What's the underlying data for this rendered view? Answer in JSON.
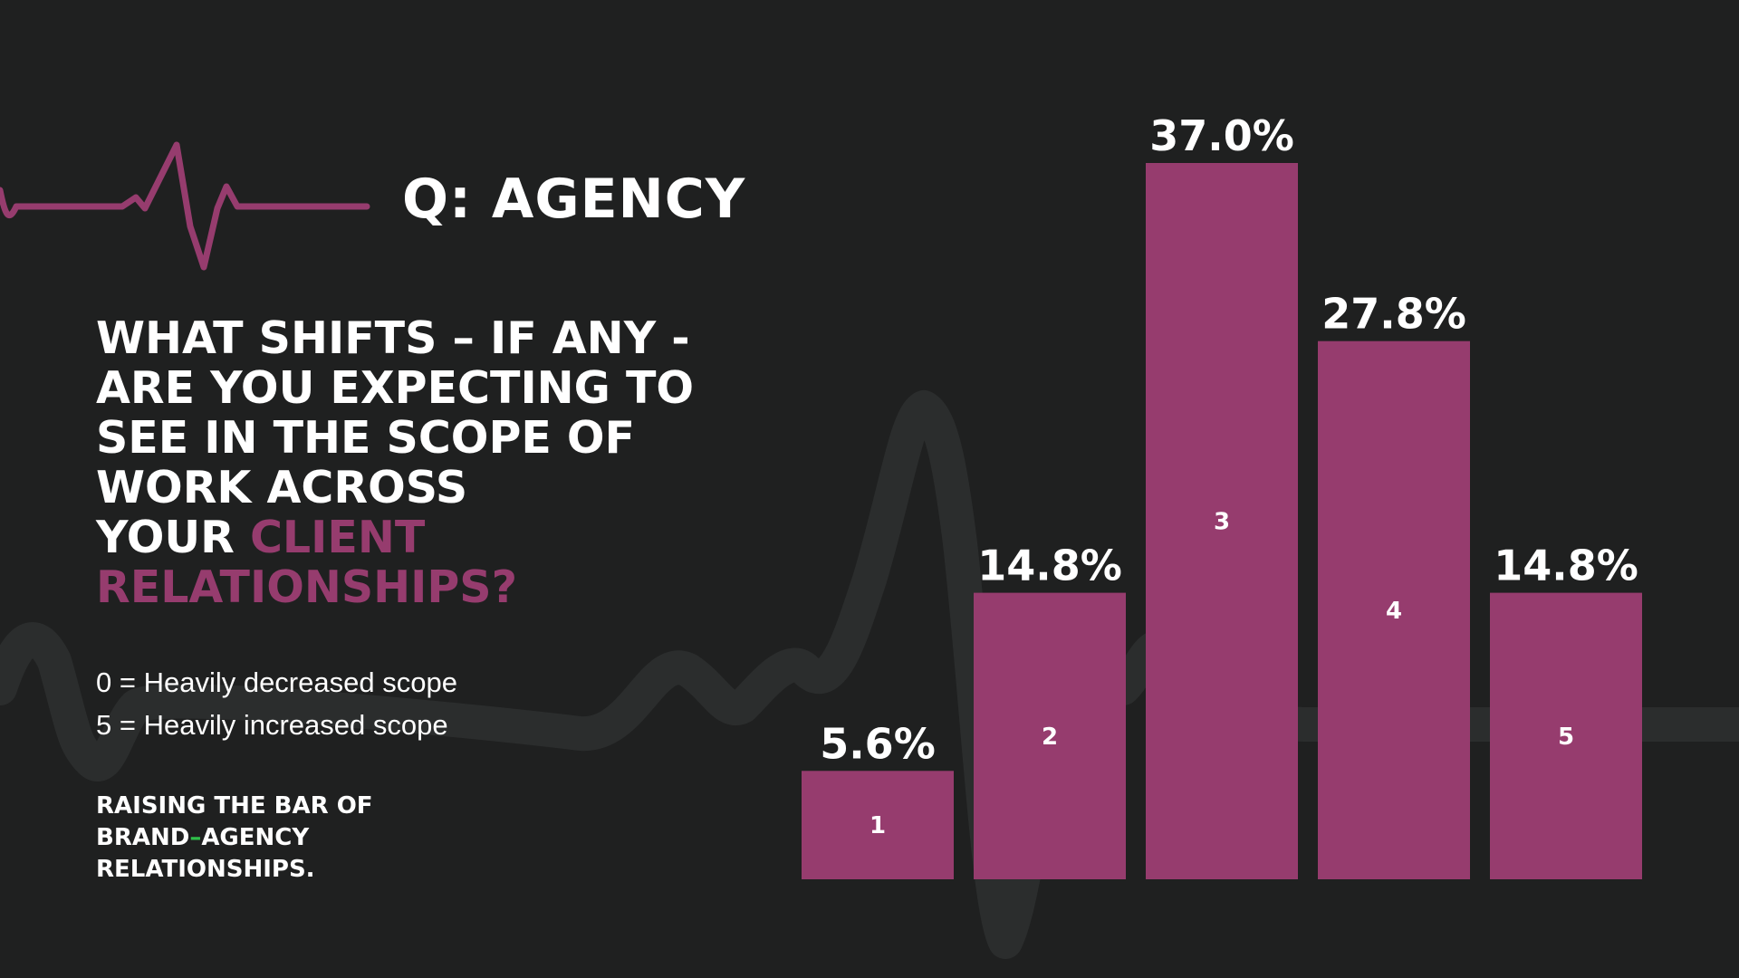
{
  "header": {
    "title": "Q: AGENCY"
  },
  "question": {
    "line1": "WHAT SHIFTS – IF ANY -",
    "line2": "ARE YOU EXPECTING TO",
    "line3": "SEE IN THE SCOPE OF",
    "line4": "WORK ACROSS",
    "line5_plain": "YOUR ",
    "line5_highlight": "CLIENT",
    "line6_highlight": "RELATIONSHIPS?"
  },
  "scale": {
    "low": "0 = Heavily decreased scope",
    "high": "5 = Heavily increased scope"
  },
  "tagline": {
    "line1": "RAISING THE BAR OF",
    "line2_a": "BRAND",
    "line2_dash": "–",
    "line2_b": "AGENCY",
    "line3": "RELATIONSHIPS."
  },
  "colors": {
    "bar": "#963c6e",
    "background": "#1f2020",
    "highlight": "#963c6e",
    "dash": "#2fbf4a"
  },
  "chart_data": {
    "type": "bar",
    "categories": [
      "1",
      "2",
      "3",
      "4",
      "5"
    ],
    "values": [
      5.6,
      14.8,
      37.0,
      27.8,
      14.8
    ],
    "value_labels": [
      "5.6%",
      "14.8%",
      "37.0%",
      "27.8%",
      "14.8%"
    ],
    "title": "",
    "xlabel": "",
    "ylabel": "",
    "ylim": [
      0,
      37
    ],
    "grid": false,
    "legend": "none"
  }
}
